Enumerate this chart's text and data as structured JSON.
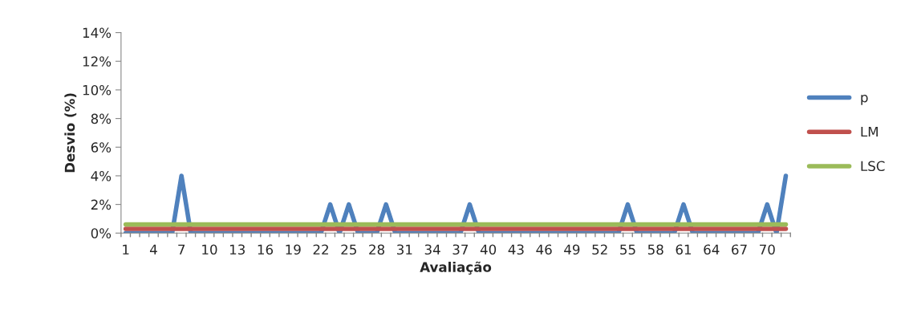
{
  "chart_data": {
    "type": "line",
    "xlabel": "Avaliação",
    "ylabel": "Desvio (%)",
    "categories": [
      "1",
      null,
      null,
      "4",
      null,
      null,
      "7",
      null,
      null,
      "10",
      null,
      null,
      "13",
      null,
      null,
      "16",
      null,
      null,
      "19",
      null,
      null,
      "22",
      null,
      null,
      "25",
      null,
      null,
      "28",
      null,
      null,
      "31",
      null,
      null,
      "34",
      null,
      null,
      "37",
      null,
      null,
      "40",
      null,
      null,
      "43",
      null,
      null,
      "46",
      null,
      null,
      "49",
      null,
      null,
      "52",
      null,
      null,
      "55",
      null,
      null,
      "58",
      null,
      null,
      "61",
      null,
      null,
      "64",
      null,
      null,
      "67",
      null,
      null,
      "70",
      null,
      null
    ],
    "series": [
      {
        "name": "p",
        "color": "#4f81bd",
        "values": [
          0,
          0,
          0,
          0,
          0,
          0,
          4,
          0,
          0,
          0,
          0,
          0,
          0,
          0,
          0,
          0,
          0,
          0,
          0,
          0,
          0,
          0,
          2,
          0,
          2,
          0,
          0,
          0,
          2,
          0,
          0,
          0,
          0,
          0,
          0,
          0,
          0,
          2,
          0,
          0,
          0,
          0,
          0,
          0,
          0,
          0,
          0,
          0,
          0,
          0,
          0,
          0,
          0,
          0,
          2,
          0,
          0,
          0,
          0,
          0,
          2,
          0,
          0,
          0,
          0,
          0,
          0,
          0,
          0,
          2,
          0,
          4
        ]
      },
      {
        "name": "LM",
        "color": "#c0504d",
        "values": [
          0.3,
          0.3,
          0.3,
          0.3,
          0.3,
          0.3,
          0.3,
          0.3,
          0.3,
          0.3,
          0.3,
          0.3,
          0.3,
          0.3,
          0.3,
          0.3,
          0.3,
          0.3,
          0.3,
          0.3,
          0.3,
          0.3,
          0.3,
          0.3,
          0.3,
          0.3,
          0.3,
          0.3,
          0.3,
          0.3,
          0.3,
          0.3,
          0.3,
          0.3,
          0.3,
          0.3,
          0.3,
          0.3,
          0.3,
          0.3,
          0.3,
          0.3,
          0.3,
          0.3,
          0.3,
          0.3,
          0.3,
          0.3,
          0.3,
          0.3,
          0.3,
          0.3,
          0.3,
          0.3,
          0.3,
          0.3,
          0.3,
          0.3,
          0.3,
          0.3,
          0.3,
          0.3,
          0.3,
          0.3,
          0.3,
          0.3,
          0.3,
          0.3,
          0.3,
          0.3,
          0.3,
          0.3
        ]
      },
      {
        "name": "LSC",
        "color": "#9bbb59",
        "values": [
          0.6,
          0.6,
          0.6,
          0.6,
          0.6,
          0.6,
          0.6,
          0.6,
          0.6,
          0.6,
          0.6,
          0.6,
          0.6,
          0.6,
          0.6,
          0.6,
          0.6,
          0.6,
          0.6,
          0.6,
          0.6,
          0.6,
          0.6,
          0.6,
          0.6,
          0.6,
          0.6,
          0.6,
          0.6,
          0.6,
          0.6,
          0.6,
          0.6,
          0.6,
          0.6,
          0.6,
          0.6,
          0.6,
          0.6,
          0.6,
          0.6,
          0.6,
          0.6,
          0.6,
          0.6,
          0.6,
          0.6,
          0.6,
          0.6,
          0.6,
          0.6,
          0.6,
          0.6,
          0.6,
          0.6,
          0.6,
          0.6,
          0.6,
          0.6,
          0.6,
          0.6,
          0.6,
          0.6,
          0.6,
          0.6,
          0.6,
          0.6,
          0.6,
          0.6,
          0.6,
          0.6,
          0.6
        ]
      }
    ],
    "ylim": [
      0,
      14
    ],
    "yticks": [
      {
        "value": 0,
        "label": "0%"
      },
      {
        "value": 2,
        "label": "2%"
      },
      {
        "value": 4,
        "label": "4%"
      },
      {
        "value": 6,
        "label": "6%"
      },
      {
        "value": 8,
        "label": "8%"
      },
      {
        "value": 10,
        "label": "10%"
      },
      {
        "value": 12,
        "label": "12%"
      },
      {
        "value": 14,
        "label": "14%"
      }
    ],
    "grid": false,
    "legend": "right",
    "marker": "none",
    "line_style": "solid"
  }
}
